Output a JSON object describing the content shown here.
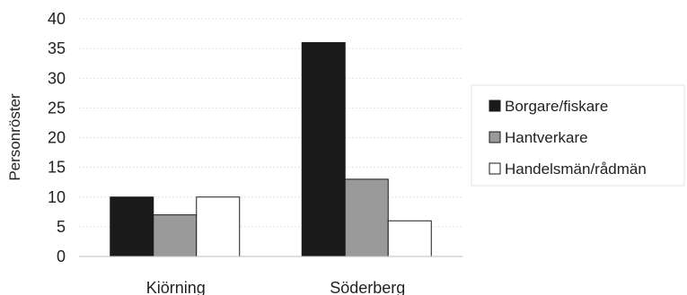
{
  "chart_data": {
    "type": "bar",
    "title": "",
    "xlabel": "",
    "ylabel": "Personröster",
    "ylim": [
      0,
      40
    ],
    "yticks": [
      0,
      5,
      10,
      15,
      20,
      25,
      30,
      35,
      40
    ],
    "grid": true,
    "legend_position": "right",
    "categories": [
      "Kiörning",
      "Söderberg"
    ],
    "series": [
      {
        "name": "Borgare/fiskare",
        "values": [
          10,
          36
        ],
        "color": "#1a1a1a"
      },
      {
        "name": "Hantverkare",
        "values": [
          7,
          13
        ],
        "color": "#9a9a9a"
      },
      {
        "name": "Handelsmän/rådmän",
        "values": [
          10,
          6
        ],
        "color": "#ffffff"
      }
    ]
  }
}
